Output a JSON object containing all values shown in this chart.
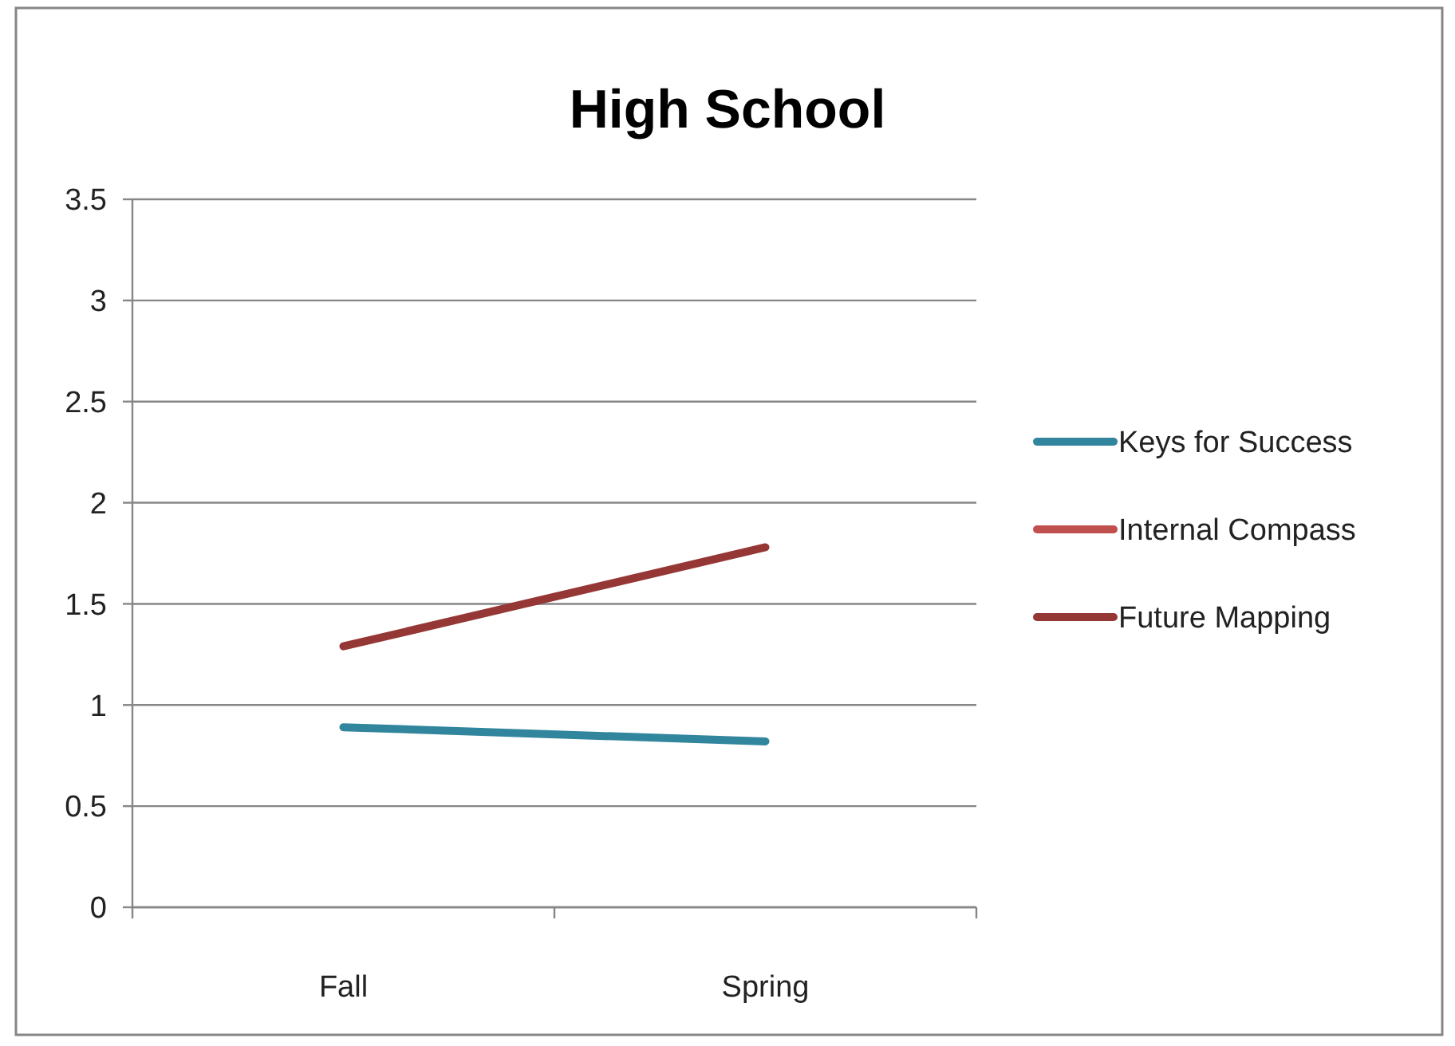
{
  "chart_data": {
    "type": "line",
    "title": "High School",
    "categories": [
      "Fall",
      "Spring"
    ],
    "series": [
      {
        "name": "Keys for Success",
        "color": "#31859c",
        "values": [
          0.89,
          0.82
        ]
      },
      {
        "name": "Internal Compass",
        "color": "#c0504d",
        "values": [
          null,
          null
        ]
      },
      {
        "name": "Future Mapping",
        "color": "#953735",
        "values": [
          1.29,
          1.78
        ]
      }
    ],
    "ylim": [
      0,
      3.5
    ],
    "yticks": [
      0,
      0.5,
      1,
      1.5,
      2,
      2.5,
      3,
      3.5
    ],
    "grid": "y",
    "legend": "right",
    "marker": "none",
    "line_style": "solid"
  }
}
